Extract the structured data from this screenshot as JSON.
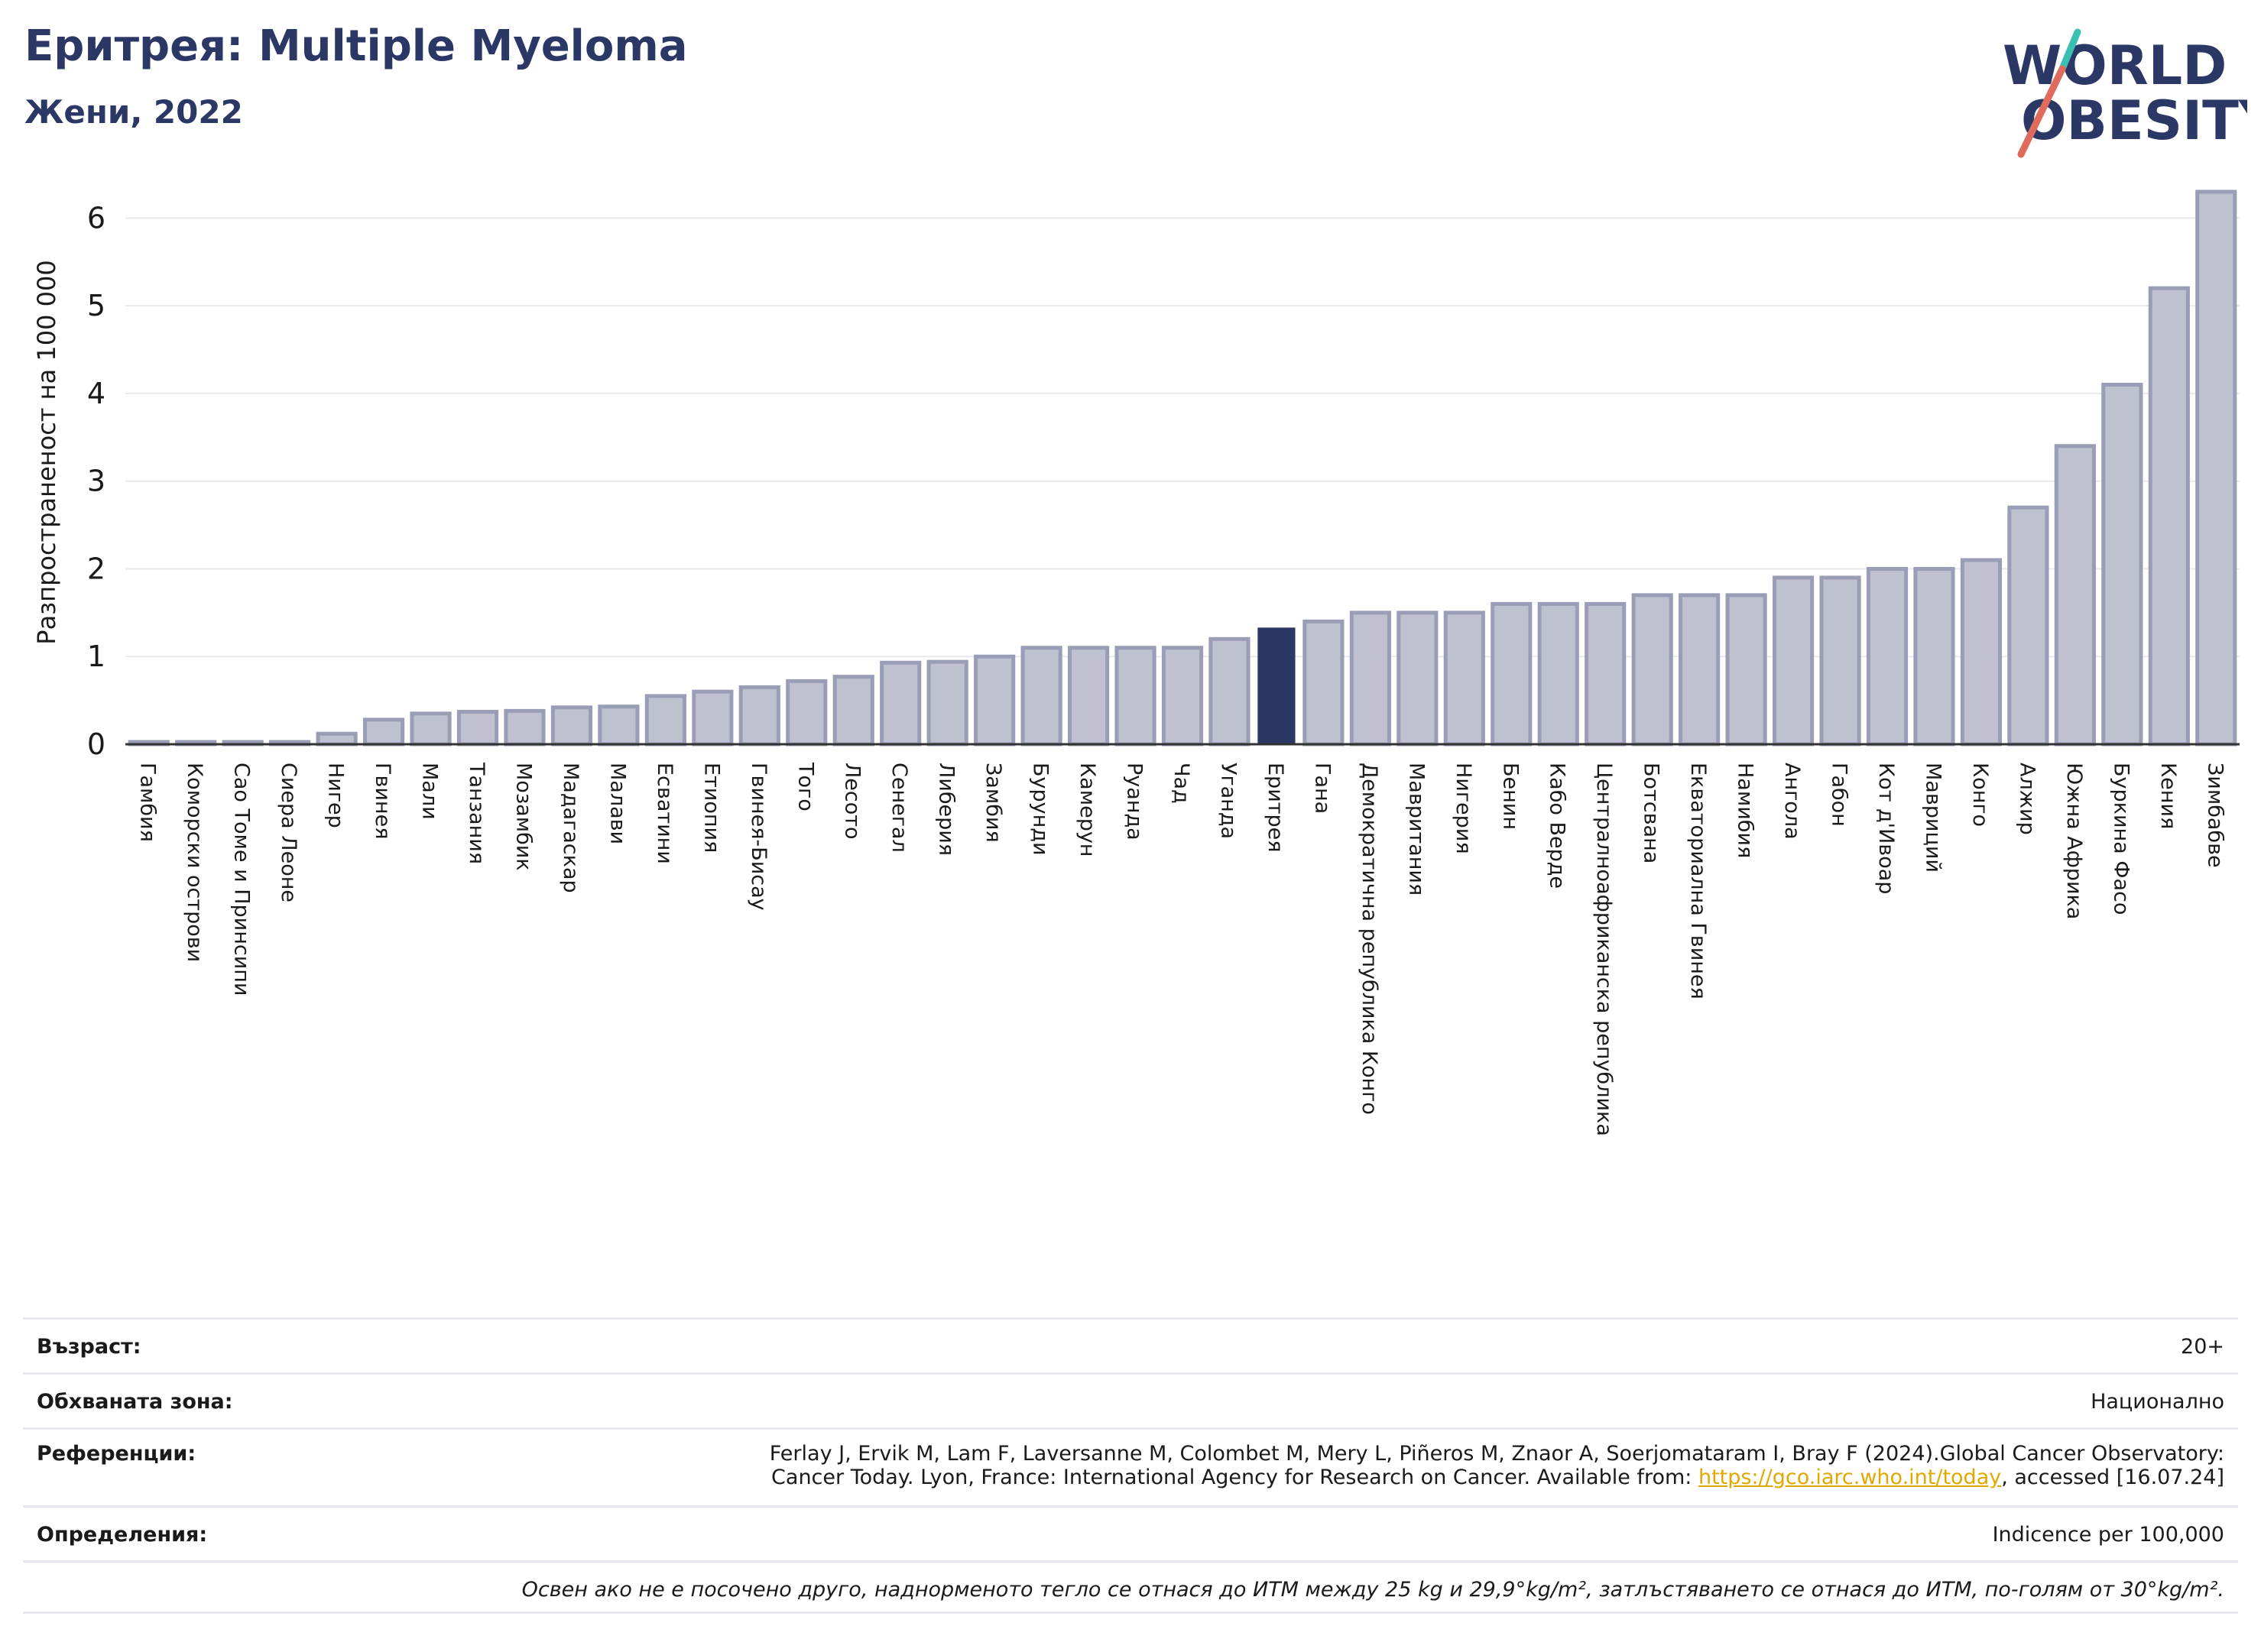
{
  "header": {
    "title": "Еритрея: Multiple Myeloma",
    "subtitle": "Жени, 2022"
  },
  "logo": {
    "line1": "WORLD",
    "line2": "OBESITY",
    "name": "world-obesity-logo"
  },
  "colors": {
    "bar": "#bfc1d0",
    "bar_edge": "#9a9db6",
    "highlight": "#2b3765",
    "grid": "#e8e9ef",
    "axis": "#333333"
  },
  "chart_data": {
    "type": "bar",
    "ylabel": "Разпространеност  на 100 000",
    "ylim": [
      0,
      6.5
    ],
    "yticks": [
      0,
      1,
      2,
      3,
      4,
      5,
      6
    ],
    "grid": true,
    "highlight": "Еритрея",
    "categories": [
      "Гамбия",
      "Коморски острови",
      "Сао Томе и Принсипи",
      "Сиера Леоне",
      "Нигер",
      "Гвинея",
      "Мали",
      "Танзания",
      "Мозамбик",
      "Мадагаскар",
      "Малави",
      "Есватини",
      "Етиопия",
      "Гвинея-Бисау",
      "Того",
      "Лесото",
      "Сенегал",
      "Либерия",
      "Замбия",
      "Бурунди",
      "Камерун",
      "Руанда",
      "Чад",
      "Уганда",
      "Еритрея",
      "Гана",
      "Демократична република Конго",
      "Мавритания",
      "Нигерия",
      "Бенин",
      "Кабо Верде",
      "Централноафриканска република",
      "Ботсвана",
      "Екваториална Гвинея",
      "Намибия",
      "Ангола",
      "Габон",
      "Кот д'Ивоар",
      "Мавриций",
      "Конго",
      "Алжир",
      "Южна Африка",
      "Буркина Фасо",
      "Кения",
      "Зимбабве"
    ],
    "values": [
      0.0,
      0.0,
      0.0,
      0.0,
      0.12,
      0.28,
      0.35,
      0.37,
      0.38,
      0.42,
      0.43,
      0.55,
      0.6,
      0.65,
      0.72,
      0.77,
      0.93,
      0.94,
      1.0,
      1.1,
      1.1,
      1.1,
      1.1,
      1.2,
      1.33,
      1.4,
      1.5,
      1.5,
      1.5,
      1.6,
      1.6,
      1.6,
      1.7,
      1.7,
      1.7,
      1.9,
      1.9,
      2.0,
      2.0,
      2.1,
      2.7,
      3.4,
      4.1,
      5.2,
      6.3
    ]
  },
  "info": {
    "age_label": "Възраст:",
    "age_value": "20+",
    "area_label": "Обхваната зона:",
    "area_value": "Национално",
    "refs_label": "Референции:",
    "refs_line1": "Ferlay J, Ervik M, Lam F, Laversanne M, Colombet M, Mery L, Piñeros M, Znaor A, Soerjomataram I, Bray F (2024).Global Cancer Observatory:",
    "refs_line2_pre": "Cancer Today. Lyon, France: International Agency for Research on Cancer. Available from: ",
    "refs_link": "https://gco.iarc.who.int/today",
    "refs_line2_post": ", accessed [16.07.24]",
    "defs_label": "Определения:",
    "defs_value": "Indicence per 100,000",
    "note": "Освен ако не е посочено друго, наднорменото тегло се отнася до ИТМ между 25 kg и 29,9°kg/m², затлъстяването се отнася до ИТМ, по-голям от 30°kg/m²."
  }
}
